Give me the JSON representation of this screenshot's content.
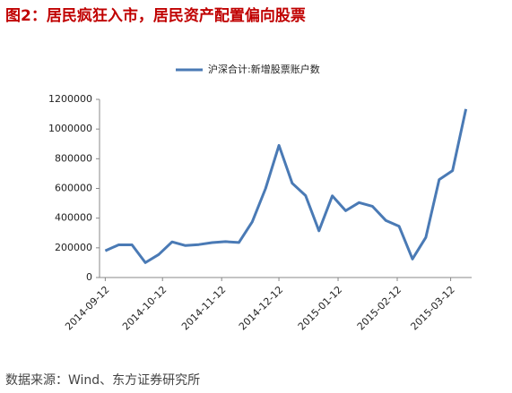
{
  "chart_data": {
    "type": "line",
    "title": "图2：居民疯狂入市，居民资产配置偏向股票",
    "source": "数据来源：Wind、东方证券研究所",
    "x": [
      "2014-09-12",
      "2014-09-19",
      "2014-09-26",
      "2014-10-03",
      "2014-10-10",
      "2014-10-17",
      "2014-10-24",
      "2014-10-31",
      "2014-11-07",
      "2014-11-14",
      "2014-11-21",
      "2014-11-28",
      "2014-12-05",
      "2014-12-12",
      "2014-12-19",
      "2014-12-26",
      "2015-01-02",
      "2015-01-09",
      "2015-01-16",
      "2015-01-23",
      "2015-01-30",
      "2015-02-06",
      "2015-02-13",
      "2015-02-20",
      "2015-02-27",
      "2015-03-06",
      "2015-03-13",
      "2015-03-20"
    ],
    "series": [
      {
        "name": "沪深合计:新增股票账户数",
        "color": "#4a7ab5",
        "values": [
          180000,
          220000,
          220000,
          100000,
          155000,
          240000,
          215000,
          222000,
          235000,
          242000,
          236000,
          375000,
          600000,
          890000,
          635000,
          552000,
          315000,
          550000,
          450000,
          505000,
          480000,
          385000,
          345000,
          125000,
          270000,
          660000,
          720000,
          1135000
        ]
      }
    ],
    "xlim": [
      "2014-09-09",
      "2015-03-23"
    ],
    "xticks": [
      "2014-09-12",
      "2014-10-12",
      "2014-11-12",
      "2014-12-12",
      "2015-01-12",
      "2015-02-12",
      "2015-03-12"
    ],
    "ylim": [
      0,
      1200000
    ],
    "yticks": [
      0,
      200000,
      400000,
      600000,
      800000,
      1000000,
      1200000
    ],
    "legend": "top",
    "grid": false
  }
}
